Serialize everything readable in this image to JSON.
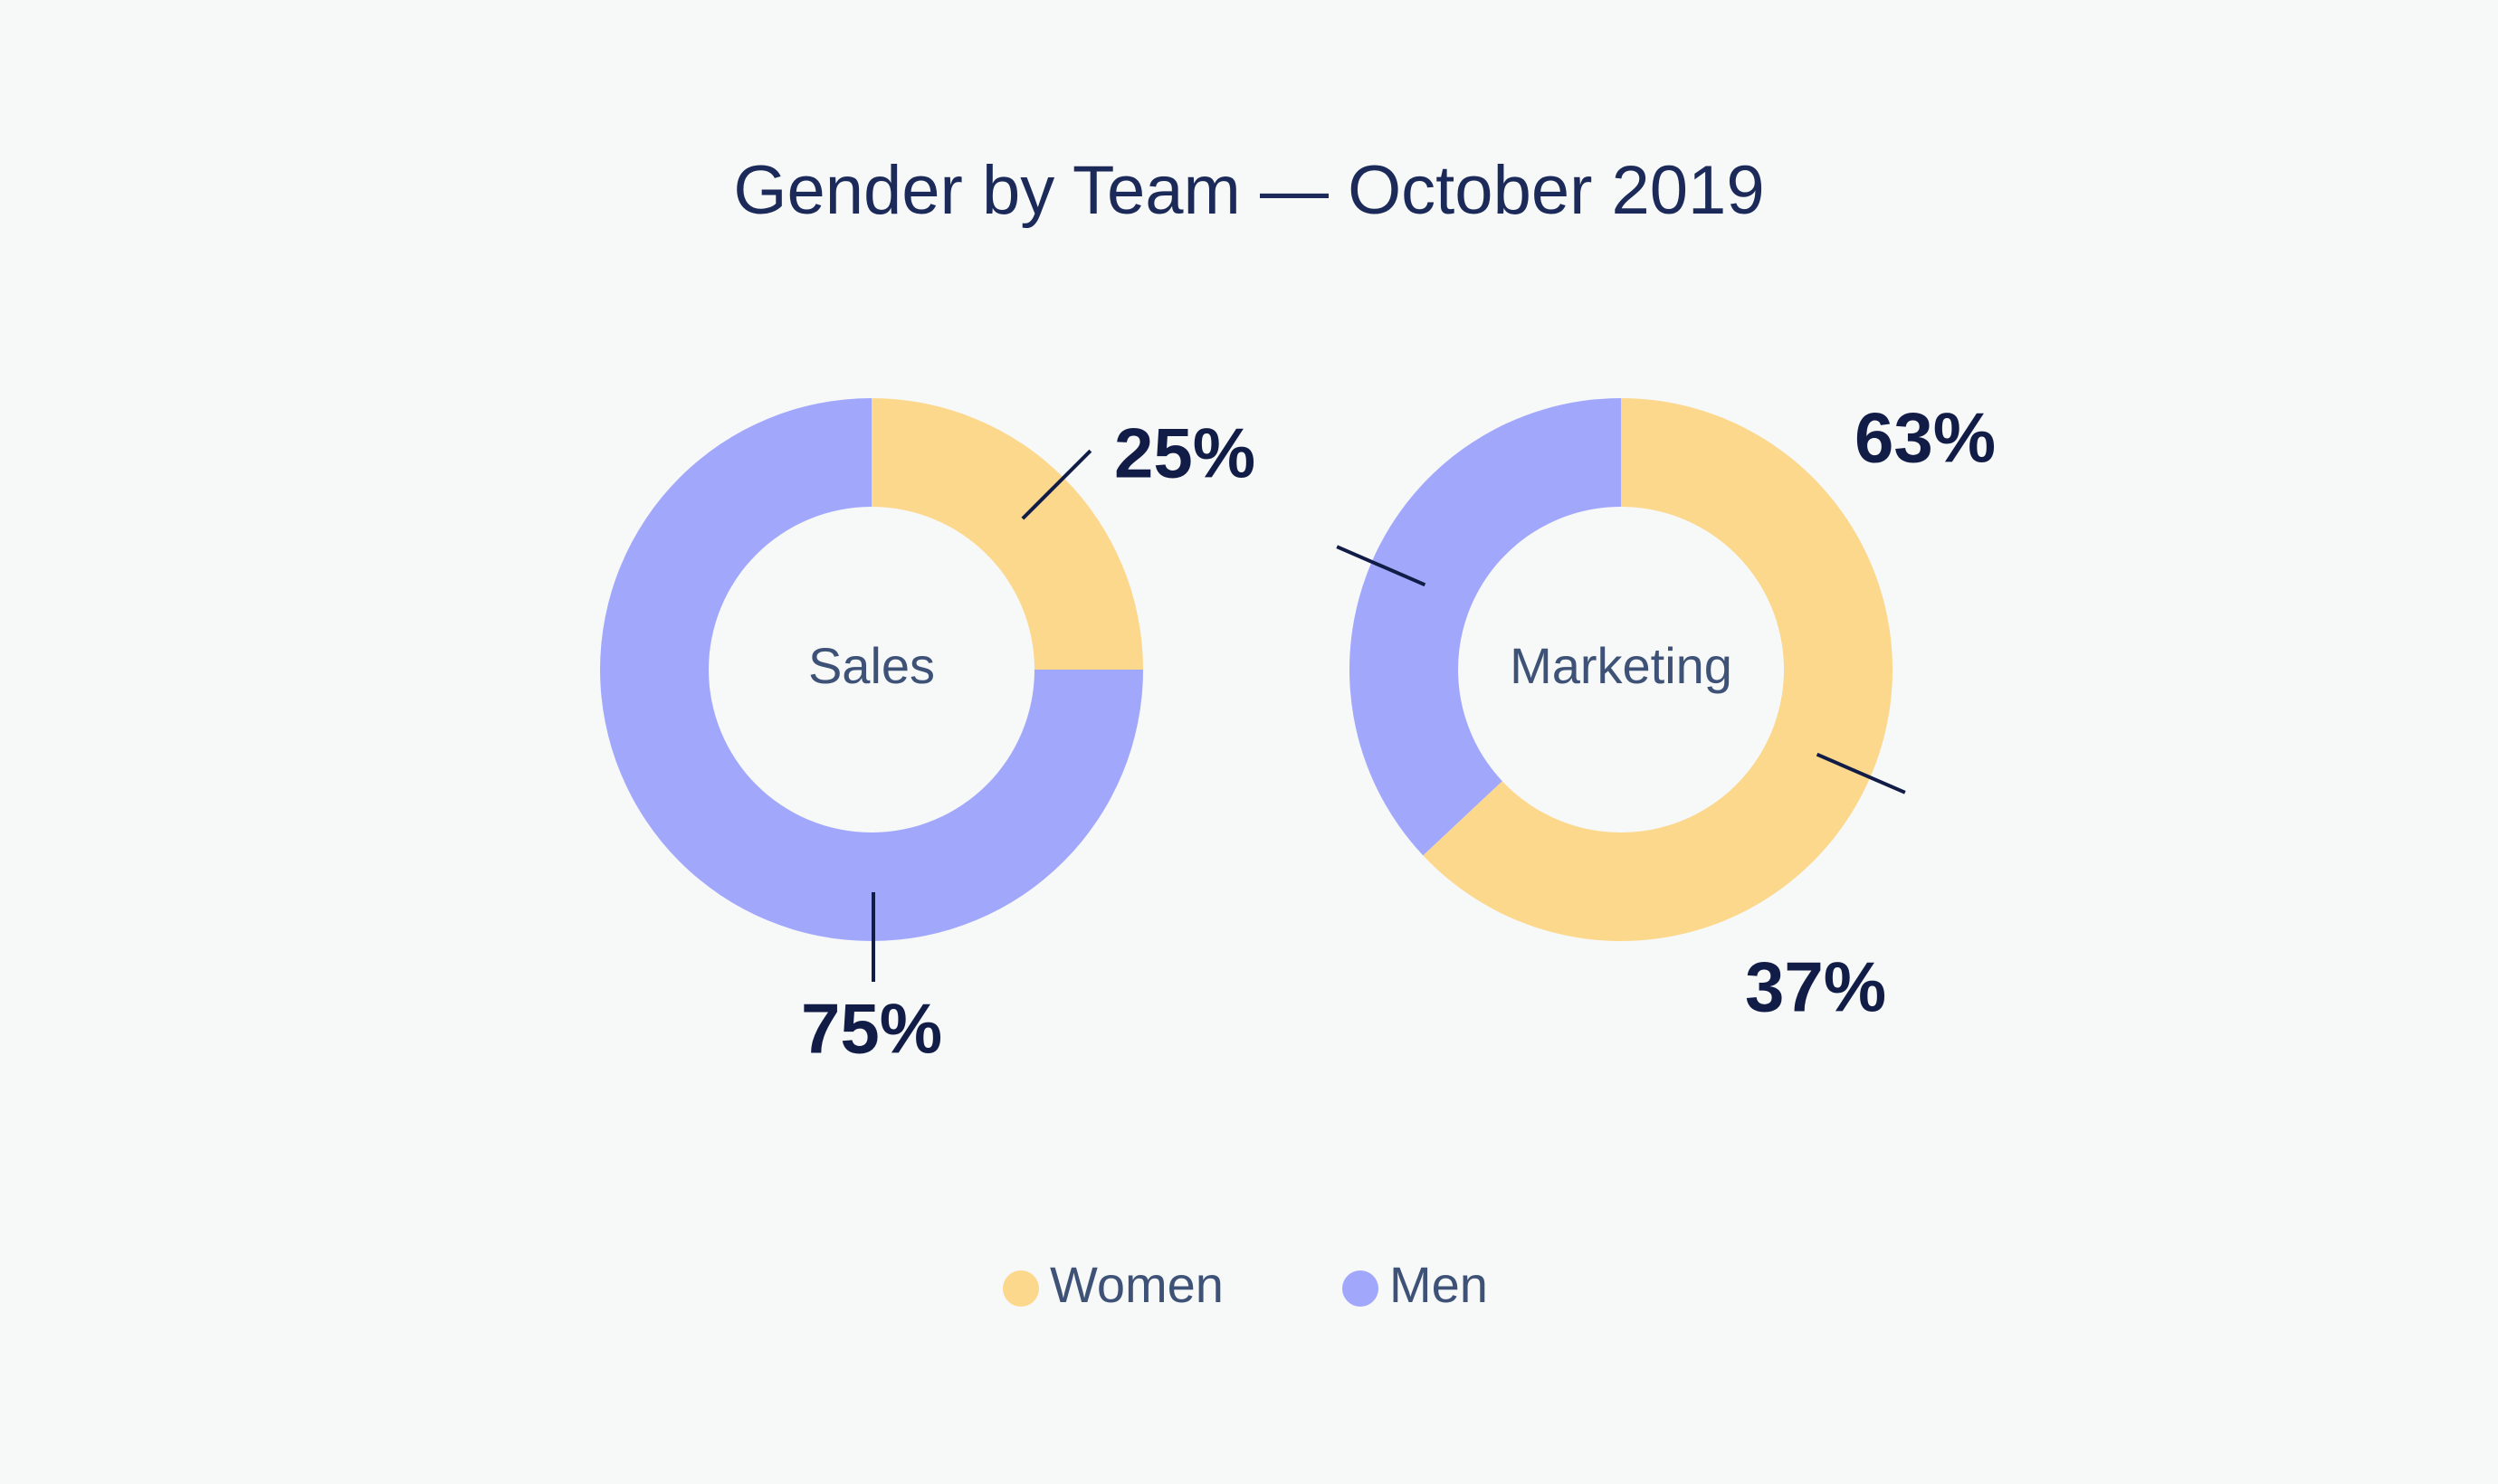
{
  "chart_data": {
    "type": "pie",
    "title": "Gender by Team — October 2019",
    "legend": {
      "placement": "bottom-center",
      "entries": [
        {
          "key": "women",
          "label": "Women",
          "color": "#fcd88d"
        },
        {
          "key": "men",
          "label": "Men",
          "color": "#a1a8fc"
        }
      ]
    },
    "charts": [
      {
        "name": "Sales",
        "slices": [
          {
            "key": "women",
            "label": "Women",
            "value": 25,
            "display": "25%"
          },
          {
            "key": "men",
            "label": "Men",
            "value": 75,
            "display": "75%"
          }
        ]
      },
      {
        "name": "Marketing",
        "slices": [
          {
            "key": "women",
            "label": "Women",
            "value": 63,
            "display": "63%"
          },
          {
            "key": "men",
            "label": "Men",
            "value": 37,
            "display": "37%"
          }
        ]
      }
    ]
  },
  "colors": {
    "background": "#f7f8f8",
    "title": "#1b2a58",
    "center_label": "#3e5277",
    "value_label": "#121d47",
    "leader_line": "#121d47",
    "legend_text": "#3e5277"
  }
}
